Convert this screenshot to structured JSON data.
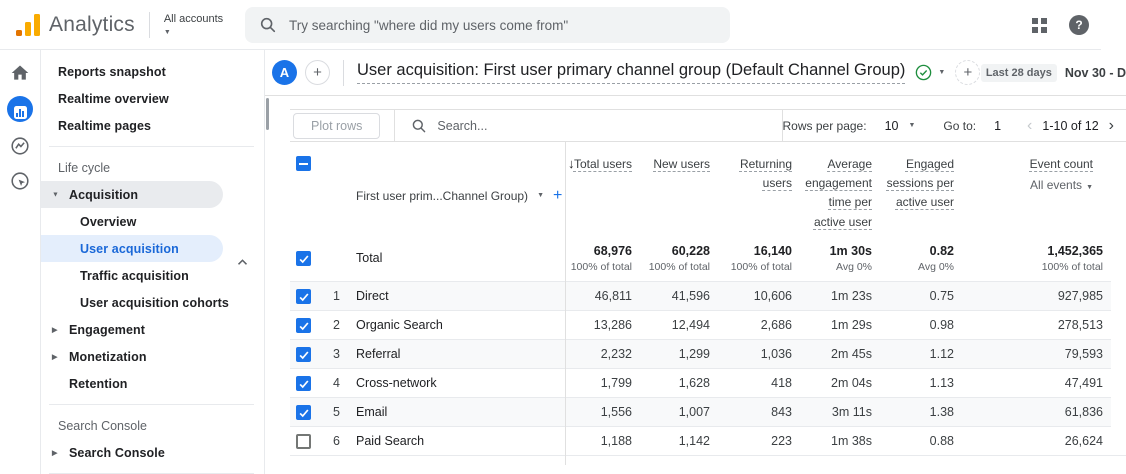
{
  "app_bar": {
    "brand": "Analytics",
    "account_switcher": "All accounts",
    "search_placeholder": "Try searching \"where did my users come from\"",
    "help_glyph": "?"
  },
  "sidebar": {
    "reports_snapshot": "Reports snapshot",
    "realtime_overview": "Realtime overview",
    "realtime_pages": "Realtime pages",
    "life_cycle_section": "Life cycle",
    "acquisition": "Acquisition",
    "overview": "Overview",
    "user_acquisition": "User acquisition",
    "traffic_acquisition": "Traffic acquisition",
    "user_acquisition_cohorts": "User acquisition cohorts",
    "engagement": "Engagement",
    "monetization": "Monetization",
    "retention": "Retention",
    "search_console_section": "Search Console",
    "search_console": "Search Console"
  },
  "report_header": {
    "avatar_letter": "A",
    "title": "User acquisition: First user primary channel group (Default Channel Group)",
    "date_range_label": "Last 28 days",
    "date_range_value": "Nov 30 - D"
  },
  "toolbar": {
    "plot_rows_label": "Plot rows",
    "search_placeholder": "Search...",
    "rows_per_page_label": "Rows per page:",
    "rows_per_page_value": "10",
    "go_to_label": "Go to:",
    "go_to_value": "1",
    "pagination_range": "1-10 of 12"
  },
  "table": {
    "dimension_header": "First user prim...Channel Group)",
    "metric_headers": {
      "total_users": "Total users",
      "new_users": "New users",
      "returning_users": "Returning users",
      "avg_engagement": "Average engagement time per active user",
      "engaged_sessions": "Engaged sessions per active user",
      "event_count": "Event count",
      "event_filter": "All events"
    },
    "total_row": {
      "label": "Total",
      "total_users": "68,976",
      "total_users_sub": "100% of total",
      "new_users": "60,228",
      "new_users_sub": "100% of total",
      "returning_users": "16,140",
      "returning_users_sub": "100% of total",
      "avg_engagement": "1m 30s",
      "avg_engagement_sub": "Avg 0%",
      "engaged_sessions": "0.82",
      "engaged_sessions_sub": "Avg 0%",
      "event_count": "1,452,365",
      "event_count_sub": "100% of total"
    },
    "rows": [
      {
        "num": "1",
        "channel": "Direct",
        "checked": true,
        "total_users": "46,811",
        "new_users": "41,596",
        "returning_users": "10,606",
        "avg_engagement": "1m 23s",
        "engaged_sessions": "0.75",
        "event_count": "927,985"
      },
      {
        "num": "2",
        "channel": "Organic Search",
        "checked": true,
        "total_users": "13,286",
        "new_users": "12,494",
        "returning_users": "2,686",
        "avg_engagement": "1m 29s",
        "engaged_sessions": "0.98",
        "event_count": "278,513"
      },
      {
        "num": "3",
        "channel": "Referral",
        "checked": true,
        "total_users": "2,232",
        "new_users": "1,299",
        "returning_users": "1,036",
        "avg_engagement": "2m 45s",
        "engaged_sessions": "1.12",
        "event_count": "79,593"
      },
      {
        "num": "4",
        "channel": "Cross-network",
        "checked": true,
        "total_users": "1,799",
        "new_users": "1,628",
        "returning_users": "418",
        "avg_engagement": "2m 04s",
        "engaged_sessions": "1.13",
        "event_count": "47,491"
      },
      {
        "num": "5",
        "channel": "Email",
        "checked": true,
        "total_users": "1,556",
        "new_users": "1,007",
        "returning_users": "843",
        "avg_engagement": "3m 11s",
        "engaged_sessions": "1.38",
        "event_count": "61,836"
      },
      {
        "num": "6",
        "channel": "Paid Search",
        "checked": false,
        "total_users": "1,188",
        "new_users": "1,142",
        "returning_users": "223",
        "avg_engagement": "1m 38s",
        "engaged_sessions": "0.88",
        "event_count": "26,624"
      }
    ]
  },
  "colors": {
    "accent_blue": "#1a73e8",
    "selected_bg": "#e4eefc",
    "logo_orange": "#f9ab00",
    "logo_orange_dark": "#e37400",
    "success_green": "#1e8e3e"
  }
}
